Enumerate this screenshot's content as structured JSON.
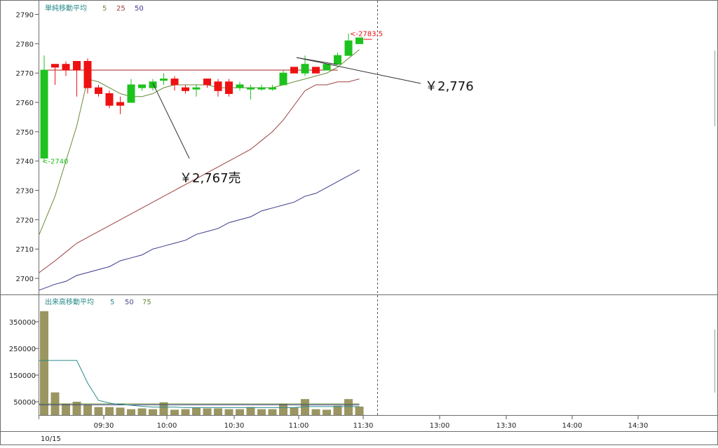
{
  "chart_data": [
    {
      "type": "candlestick",
      "legend_title": "単純移動平均",
      "ma_periods": [
        {
          "label": "5",
          "color": "#6a8a3a"
        },
        {
          "label": "25",
          "color": "#9b4040"
        },
        {
          "label": "50",
          "color": "#3a3a8a"
        }
      ],
      "y_ticks": [
        "2790",
        "2780",
        "2770",
        "2760",
        "2750",
        "2740",
        "2730",
        "2720",
        "2710",
        "2700"
      ],
      "ylim": [
        2695,
        2793
      ],
      "up_color": "#1ec21e",
      "down_color": "#ee1111",
      "candles": [
        {
          "o": 2741,
          "h": 2776,
          "l": 2740,
          "c": 2771
        },
        {
          "o": 2773,
          "h": 2773,
          "l": 2766,
          "c": 2772
        },
        {
          "o": 2773,
          "h": 2774,
          "l": 2769,
          "c": 2771
        },
        {
          "o": 2774,
          "h": 2774,
          "l": 2762,
          "c": 2771
        },
        {
          "o": 2774,
          "h": 2775,
          "l": 2763,
          "c": 2765
        },
        {
          "o": 2765,
          "h": 2766,
          "l": 2762,
          "c": 2763
        },
        {
          "o": 2763,
          "h": 2764,
          "l": 2758,
          "c": 2759
        },
        {
          "o": 2760,
          "h": 2762,
          "l": 2756,
          "c": 2759
        },
        {
          "o": 2760,
          "h": 2768,
          "l": 2760,
          "c": 2766
        },
        {
          "o": 2765,
          "h": 2766,
          "l": 2764,
          "c": 2766
        },
        {
          "o": 2765,
          "h": 2768,
          "l": 2764,
          "c": 2767
        },
        {
          "o": 2768,
          "h": 2770,
          "l": 2766,
          "c": 2768
        },
        {
          "o": 2768,
          "h": 2769,
          "l": 2764,
          "c": 2766
        },
        {
          "o": 2765,
          "h": 2766,
          "l": 2763,
          "c": 2764
        },
        {
          "o": 2765,
          "h": 2766,
          "l": 2762,
          "c": 2765
        },
        {
          "o": 2768,
          "h": 2768,
          "l": 2765,
          "c": 2766
        },
        {
          "o": 2767,
          "h": 2768,
          "l": 2762,
          "c": 2764
        },
        {
          "o": 2767,
          "h": 2768,
          "l": 2762,
          "c": 2763
        },
        {
          "o": 2765,
          "h": 2767,
          "l": 2764,
          "c": 2766
        },
        {
          "o": 2765,
          "h": 2766,
          "l": 2761,
          "c": 2765
        },
        {
          "o": 2765,
          "h": 2766,
          "l": 2764,
          "c": 2765
        },
        {
          "o": 2765,
          "h": 2766,
          "l": 2764,
          "c": 2765
        },
        {
          "o": 2766,
          "h": 2771,
          "l": 2766,
          "c": 2770
        },
        {
          "o": 2772,
          "h": 2772,
          "l": 2770,
          "c": 2770
        },
        {
          "o": 2770,
          "h": 2776,
          "l": 2769,
          "c": 2773
        },
        {
          "o": 2772,
          "h": 2772,
          "l": 2770,
          "c": 2770
        },
        {
          "o": 2771,
          "h": 2773,
          "l": 2771,
          "c": 2773
        },
        {
          "o": 2773,
          "h": 2777,
          "l": 2773,
          "c": 2776
        },
        {
          "o": 2776,
          "h": 2783.5,
          "l": 2776,
          "c": 2781
        },
        {
          "o": 2780,
          "h": 2782,
          "l": 2780,
          "c": 2782
        }
      ],
      "ma5": [
        2715,
        2728,
        2740,
        2752,
        2768,
        2767,
        2765,
        2763,
        2762,
        2762,
        2763,
        2765,
        2766,
        2766,
        2766,
        2766,
        2765,
        2765,
        2765,
        2765,
        2765,
        2765,
        2766,
        2767,
        2768,
        2769,
        2770,
        2772,
        2775,
        2778
      ],
      "ma25": [
        2702,
        2706,
        2709,
        2712,
        2714,
        2716,
        2718,
        2720,
        2722,
        2724,
        2726,
        2728,
        2730,
        2732,
        2734,
        2736,
        2738,
        2740,
        2742,
        2744,
        2747,
        2750,
        2754,
        2759,
        2764,
        2766,
        2766,
        2767,
        2767,
        2768
      ],
      "ma50": [
        2696,
        2698,
        2699,
        2701,
        2702,
        2703,
        2704,
        2706,
        2707,
        2708,
        2710,
        2711,
        2712,
        2713,
        2715,
        2716,
        2717,
        2719,
        2720,
        2721,
        2723,
        2724,
        2725,
        2726,
        2728,
        2729,
        2731,
        2733,
        2735,
        2737
      ],
      "hline_value": 2771,
      "low_label": "<-2740",
      "high_label": "<-2783.5",
      "annotations": [
        {
          "text": "￥2,767売",
          "value": 2767,
          "candle": 10
        },
        {
          "text": "￥2,776",
          "value": 2776,
          "candle": 24
        }
      ]
    },
    {
      "type": "bar",
      "legend_title": "出来高移動平均",
      "ma_periods": [
        {
          "label": "5",
          "color": "#2a8a8a"
        },
        {
          "label": "50",
          "color": "#4a4a8a"
        },
        {
          "label": "75",
          "color": "#6a8a3a"
        }
      ],
      "y_ticks": [
        "350000",
        "250000",
        "150000",
        "50000"
      ],
      "ylim": [
        0,
        400000
      ],
      "bar_color": "#9b9661",
      "values": [
        390000,
        85000,
        42000,
        50000,
        40000,
        30000,
        30000,
        28000,
        22000,
        25000,
        22000,
        48000,
        20000,
        22000,
        28000,
        25000,
        25000,
        22000,
        22000,
        30000,
        22000,
        22000,
        42000,
        28000,
        60000,
        22000,
        20000,
        35000,
        60000,
        32000
      ],
      "vol_ma5": [
        205000,
        205000,
        205000,
        205000,
        120000,
        55000,
        45000,
        40000,
        37000,
        33000,
        30000,
        30000,
        30000,
        28000,
        28000,
        28000,
        28000,
        28000,
        28000,
        28000,
        28000,
        28000,
        28000,
        28000,
        32000,
        32000,
        32000,
        32000,
        32000,
        32000
      ],
      "vol_ma50": [
        38000,
        38000,
        38000,
        38000,
        38000,
        38000,
        38000,
        38000,
        38000,
        38000,
        38000,
        38000,
        38000,
        38000,
        38000,
        38000,
        38000,
        38000,
        38000,
        38000,
        38000,
        38000,
        38000,
        38000,
        38000,
        38000,
        38000,
        38000,
        38000,
        38000
      ],
      "vol_ma75": [
        42000,
        42000,
        42000,
        42000,
        42000,
        42000,
        42000,
        42000,
        42000,
        42000,
        42000,
        42000,
        42000,
        42000,
        42000,
        42000,
        42000,
        42000,
        42000,
        42000,
        42000,
        42000,
        42000,
        42000,
        42000,
        42000,
        42000,
        42000,
        42000,
        42000
      ]
    }
  ],
  "x_axis": {
    "labels": [
      "09:30",
      "10:00",
      "10:30",
      "11:00",
      "11:30",
      "13:00",
      "13:30",
      "14:00",
      "14:30"
    ],
    "date_label": "10/15"
  }
}
